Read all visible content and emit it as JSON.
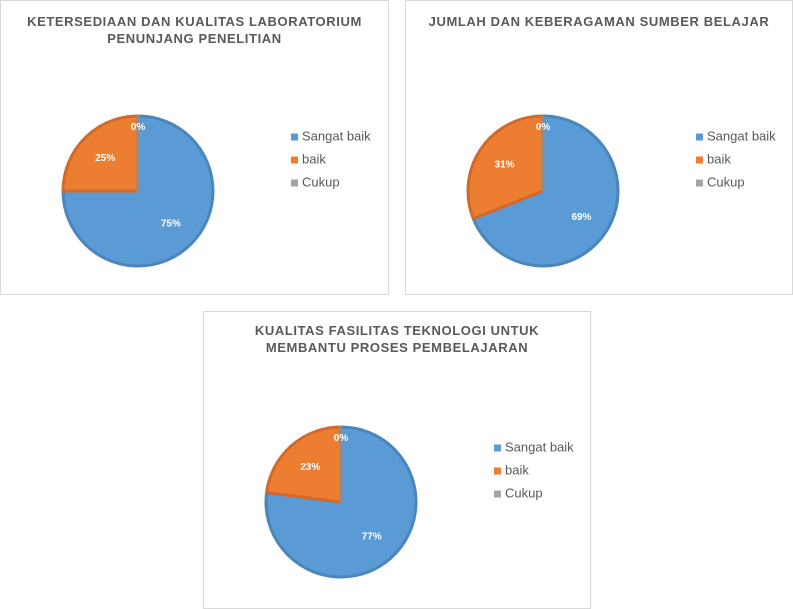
{
  "chart_data": [
    {
      "type": "pie",
      "title": "KETERSEDIAAN DAN KUALITAS LABORATORIUM PENUNJANG PENELITIAN",
      "categories": [
        "Sangat baik",
        "baik",
        "Cukup"
      ],
      "values": [
        75,
        25,
        0
      ],
      "value_labels": [
        "75%",
        "25%",
        "0%"
      ],
      "colors": [
        "#5b9bd5",
        "#ed7d31",
        "#a5a5a5"
      ],
      "legend": "right"
    },
    {
      "type": "pie",
      "title": "JUMLAH DAN KEBERAGAMAN SUMBER BELAJAR",
      "categories": [
        "Sangat baik",
        "baik",
        "Cukup"
      ],
      "values": [
        69,
        31,
        0
      ],
      "value_labels": [
        "69%",
        "31%",
        "0%"
      ],
      "colors": [
        "#5b9bd5",
        "#ed7d31",
        "#a5a5a5"
      ],
      "legend": "right"
    },
    {
      "type": "pie",
      "title": "KUALITAS FASILITAS TEKNOLOGI UNTUK MEMBANTU PROSES PEMBELAJARAN",
      "categories": [
        "Sangat baik",
        "baik",
        "Cukup"
      ],
      "values": [
        77,
        23,
        0
      ],
      "value_labels": [
        "77%",
        "23%",
        "0%"
      ],
      "colors": [
        "#5b9bd5",
        "#ed7d31",
        "#a5a5a5"
      ],
      "legend": "right"
    }
  ]
}
